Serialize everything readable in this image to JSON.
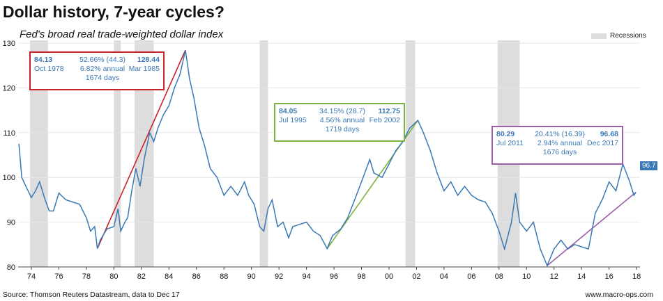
{
  "title": "Dollar history, 7-year cycles?",
  "subtitle": "Fed's broad real trade-weighted dollar index",
  "source": "Source: Thomson Reuters Datastream, data to Dec 17",
  "site": "www.macro-ops.com",
  "legend": {
    "recessions": "Recessions"
  },
  "end_label": "96.7",
  "colors": {
    "series": "#3a78b5",
    "cycle1": "#c8232c",
    "cycle2": "#7cb342",
    "cycle3": "#9b5ea8",
    "recession": "#dddddd"
  },
  "annotations": [
    {
      "start_value": "84.13",
      "start_date": "Oct 1978",
      "change": "52.66% (44.3)",
      "annual": "6.82% annual",
      "days": "1674 days",
      "end_value": "128.44",
      "end_date": "Mar 1985"
    },
    {
      "start_value": "84.05",
      "start_date": "Jul 1995",
      "change": "34.15% (28.7)",
      "annual": "4.56% annual",
      "days": "1719 days",
      "end_value": "112.75",
      "end_date": "Feb 2002"
    },
    {
      "start_value": "80.29",
      "start_date": "Jul 2011",
      "change": "20.41% (16.39)",
      "annual": "2.94% annual",
      "days": "1676 days",
      "end_value": "96.68",
      "end_date": "Dec 2017"
    }
  ],
  "chart_data": {
    "type": "line",
    "ylim": [
      80,
      130
    ],
    "yticks": [
      "80",
      "90",
      "100",
      "110",
      "120",
      "130"
    ],
    "xlim": [
      1973,
      2018.3
    ],
    "xticks": [
      "74",
      "76",
      "78",
      "80",
      "82",
      "84",
      "86",
      "88",
      "90",
      "92",
      "94",
      "96",
      "98",
      "00",
      "02",
      "04",
      "06",
      "08",
      "10",
      "12",
      "14",
      "16",
      "18"
    ],
    "grid": true,
    "legend_position": "top-right",
    "recessions": [
      [
        1973.9,
        1975.2
      ],
      [
        1980.0,
        1980.5
      ],
      [
        1981.5,
        1982.9
      ],
      [
        1990.6,
        1991.2
      ],
      [
        2001.2,
        2001.9
      ],
      [
        2007.9,
        2009.5
      ]
    ],
    "series": [
      {
        "x": [
          1973.1,
          1973.3,
          1973.6,
          1974.0,
          1974.3,
          1974.6,
          1975.0,
          1975.3,
          1975.6,
          1976.0,
          1976.5,
          1977.0,
          1977.5,
          1978.0,
          1978.3,
          1978.6,
          1978.8,
          1979.0,
          1979.5,
          1980.0,
          1980.3,
          1980.5,
          1980.8,
          1981.0,
          1981.3,
          1981.6,
          1981.9,
          1982.2,
          1982.6,
          1982.9,
          1983.2,
          1983.6,
          1984.0,
          1984.4,
          1984.8,
          1985.2,
          1985.5,
          1985.8,
          1986.2,
          1986.6,
          1987.0,
          1987.5,
          1988.0,
          1988.5,
          1989.0,
          1989.5,
          1989.8,
          1990.2,
          1990.6,
          1990.9,
          1991.2,
          1991.5,
          1991.9,
          1992.3,
          1992.7,
          1993.0,
          1993.5,
          1994.0,
          1994.5,
          1995.0,
          1995.5,
          1995.9,
          1996.5,
          1997.0,
          1997.5,
          1998.0,
          1998.6,
          1998.9,
          1999.5,
          2000.0,
          2000.5,
          2001.0,
          2001.5,
          2002.1,
          2002.5,
          2003.0,
          2003.5,
          2004.0,
          2004.5,
          2005.0,
          2005.5,
          2006.0,
          2006.5,
          2007.0,
          2007.5,
          2008.0,
          2008.4,
          2008.9,
          2009.2,
          2009.5,
          2010.0,
          2010.5,
          2011.0,
          2011.5,
          2012.0,
          2012.5,
          2013.0,
          2013.5,
          2014.0,
          2014.5,
          2015.0,
          2015.5,
          2016.0,
          2016.5,
          2017.0,
          2017.5,
          2017.8,
          2017.95
        ],
        "y": [
          107.5,
          100,
          98,
          95.5,
          97,
          99,
          95,
          92.5,
          92.5,
          96.5,
          95,
          94.5,
          94,
          91,
          88,
          89,
          84.1,
          86,
          88.5,
          89,
          93,
          88,
          90,
          91,
          97,
          102,
          98,
          104,
          110,
          108,
          111,
          114,
          116,
          120,
          123,
          128.4,
          122,
          118,
          111,
          107,
          102,
          100,
          96,
          98,
          96,
          99,
          96,
          94,
          89,
          88,
          93,
          95,
          89,
          90,
          86.5,
          89,
          89.5,
          90,
          88,
          87,
          84.1,
          87,
          88.5,
          91,
          95,
          99,
          104,
          101,
          100,
          103,
          106,
          108,
          111,
          112.75,
          110,
          106,
          101,
          97,
          99,
          96,
          98,
          96,
          95,
          94.5,
          92,
          88,
          84,
          90,
          96.5,
          90,
          88,
          90,
          84,
          80.3,
          84,
          86,
          84,
          85,
          84.5,
          84,
          92,
          95,
          99,
          97,
          103,
          99,
          96,
          96.7
        ]
      }
    ],
    "trend_lines": [
      {
        "x": [
          1978.8,
          1985.2
        ],
        "y": [
          84.13,
          128.44
        ]
      },
      {
        "x": [
          1995.5,
          2002.1
        ],
        "y": [
          84.05,
          112.75
        ]
      },
      {
        "x": [
          2011.5,
          2017.95
        ],
        "y": [
          80.29,
          96.68
        ]
      }
    ]
  }
}
